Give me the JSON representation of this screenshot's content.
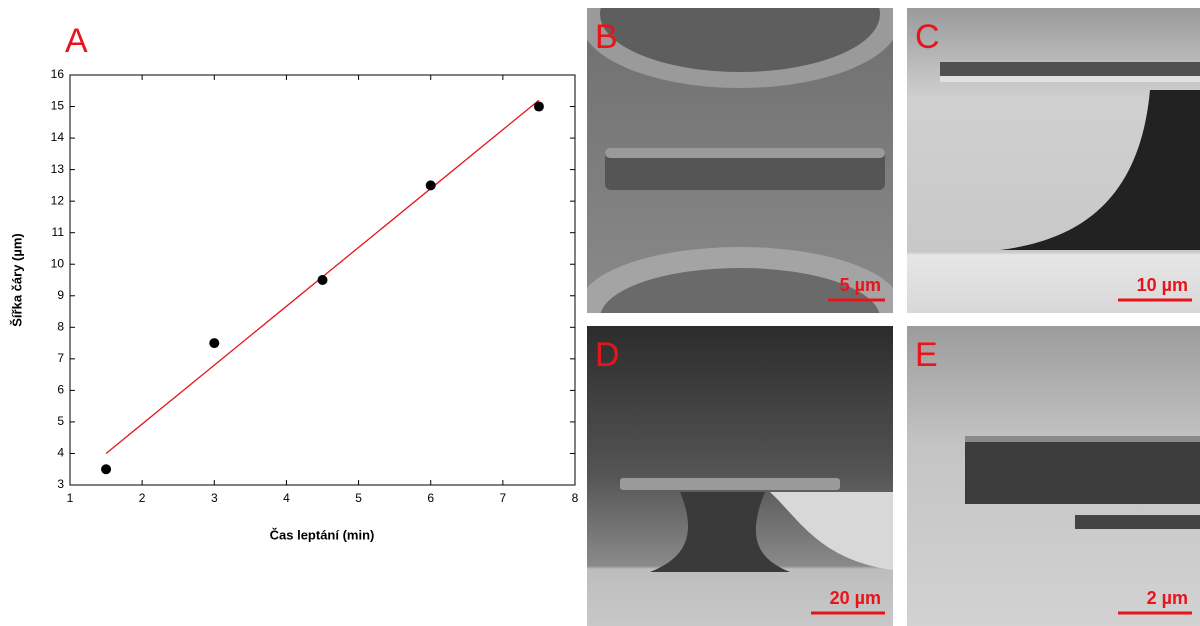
{
  "chart_data": {
    "type": "scatter",
    "panel_label": "A",
    "x_label": "Čas leptání (min)",
    "y_label": "Šířka čáry (µm)",
    "series": [
      {
        "color": "#000000",
        "x": [
          1.5,
          3,
          4.5,
          6,
          7.5
        ],
        "values": [
          3.5,
          7.5,
          9.5,
          12.5,
          15
        ]
      }
    ],
    "fit": {
      "color": "#e8141c",
      "x": [
        1.5,
        7.5
      ],
      "values": [
        4.0,
        15.2
      ]
    },
    "xlim": [
      1,
      8
    ],
    "xticks": [
      1,
      2,
      3,
      4,
      5,
      6,
      7,
      8
    ],
    "ylim": [
      3,
      16
    ],
    "yticks": [
      3,
      4,
      5,
      6,
      7,
      8,
      9,
      10,
      11,
      12,
      13,
      14,
      15,
      16
    ],
    "grid": false
  },
  "panels": [
    {
      "label": "B",
      "scale_bar": "5 µm"
    },
    {
      "label": "C",
      "scale_bar": "10 µm"
    },
    {
      "label": "D",
      "scale_bar": "20 µm"
    },
    {
      "label": "E",
      "scale_bar": "2 µm"
    }
  ]
}
